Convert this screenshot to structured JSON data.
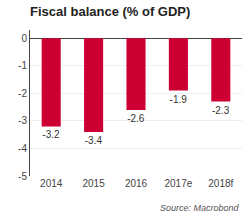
{
  "chart_data": {
    "type": "bar",
    "title": "Fiscal balance (% of GDP)",
    "categories": [
      "2014",
      "2015",
      "2016",
      "2017e",
      "2018f"
    ],
    "values": [
      -3.2,
      -3.4,
      -2.6,
      -1.9,
      -2.3
    ],
    "color": "#cc0033",
    "ylim": [
      -5,
      0.3
    ],
    "yticks": [
      0,
      -1,
      -2,
      -3,
      -4,
      -5
    ],
    "grid": true,
    "data_labels": true,
    "annotations": [
      "Source: Macrobond"
    ]
  }
}
